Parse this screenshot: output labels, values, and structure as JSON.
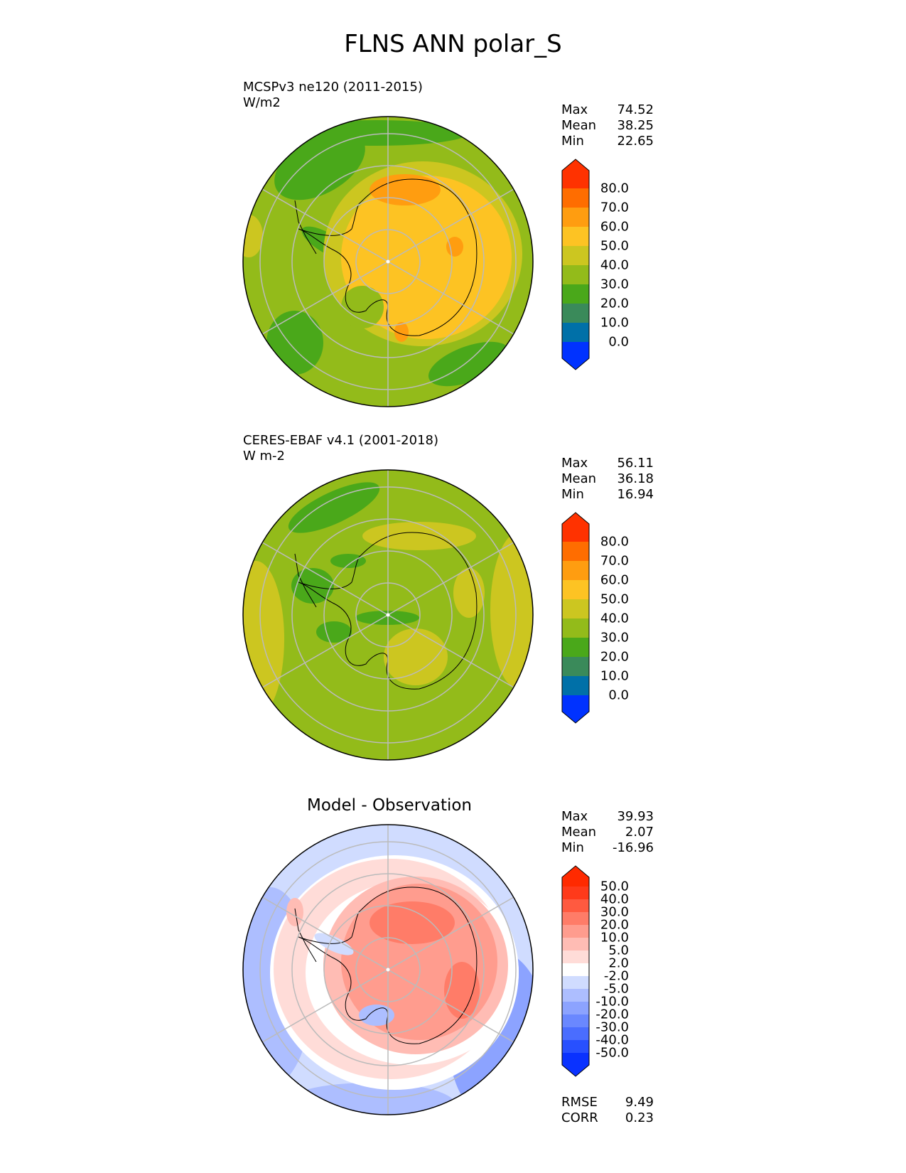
{
  "title": "FLNS ANN polar_S",
  "panels": [
    {
      "id": "model",
      "title_line1": "MCSPv3 ne120 (2011-2015)",
      "title_line2": "W/m2",
      "stats": {
        "max_label": "Max",
        "max": "74.52",
        "mean_label": "Mean",
        "mean": "38.25",
        "min_label": "Min",
        "min": "22.65"
      },
      "colorbar": {
        "ticks": [
          "80.0",
          "70.0",
          "60.0",
          "50.0",
          "40.0",
          "30.0",
          "20.0",
          "10.0",
          "0.0"
        ],
        "colors": [
          "#0032ff",
          "#0070a8",
          "#3a8a5a",
          "#4aa81a",
          "#93bb1a",
          "#ccc620",
          "#fdc323",
          "#ff9d10",
          "#ff6d00",
          "#ff3200"
        ]
      }
    },
    {
      "id": "obs",
      "title_line1": "CERES-EBAF v4.1 (2001-2018)",
      "title_line2": "W m-2",
      "stats": {
        "max_label": "Max",
        "max": "56.11",
        "mean_label": "Mean",
        "mean": "36.18",
        "min_label": "Min",
        "min": "16.94"
      },
      "colorbar": {
        "ticks": [
          "80.0",
          "70.0",
          "60.0",
          "50.0",
          "40.0",
          "30.0",
          "20.0",
          "10.0",
          "0.0"
        ],
        "colors": [
          "#0032ff",
          "#0070a8",
          "#3a8a5a",
          "#4aa81a",
          "#93bb1a",
          "#ccc620",
          "#fdc323",
          "#ff9d10",
          "#ff6d00",
          "#ff3200"
        ]
      }
    },
    {
      "id": "diff",
      "center_title": "Model - Observation",
      "stats": {
        "max_label": "Max",
        "max": "39.93",
        "mean_label": "Mean",
        "mean": "2.07",
        "min_label": "Min",
        "min": "-16.96"
      },
      "colorbar": {
        "ticks": [
          "50.0",
          "40.0",
          "30.0",
          "20.0",
          "10.0",
          "5.0",
          "2.0",
          "-2.0",
          "-5.0",
          "-10.0",
          "-20.0",
          "-30.0",
          "-40.0",
          "-50.0"
        ],
        "colors": [
          "#0a32ff",
          "#2850ff",
          "#4a6dff",
          "#6a88ff",
          "#8ca3ff",
          "#adbeff",
          "#d0dcff",
          "#ffffff",
          "#ffdcd8",
          "#ffbcb4",
          "#ff9c8e",
          "#ff7c68",
          "#ff5a40",
          "#ff3a1a",
          "#ff2a00"
        ]
      },
      "rmse_label": "RMSE",
      "rmse": "9.49",
      "corr_label": "CORR",
      "corr": "0.23"
    }
  ]
}
